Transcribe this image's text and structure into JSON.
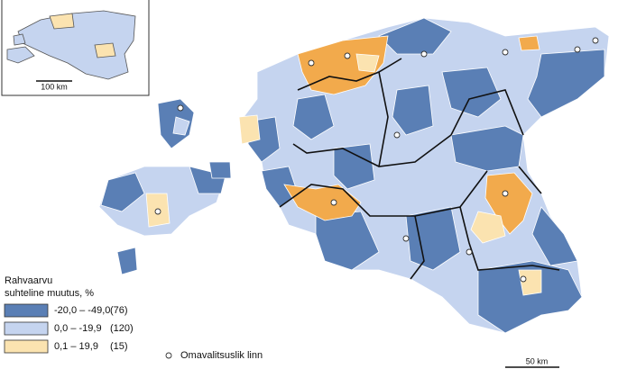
{
  "inset": {
    "scale_label": "100 km"
  },
  "legend": {
    "title_lines": [
      "Rahvaarvu",
      "suhteline muutus, %"
    ],
    "items": [
      {
        "range": "-20,0 –  -49,0",
        "count": "(76)"
      },
      {
        "range": "0,0 –  -19,9",
        "count": "(120)"
      },
      {
        "range": "0,1 –  19,9",
        "count": "(15)"
      }
    ]
  },
  "symbols": {
    "town": "Omavalitsuslik linn"
  },
  "scale_label": "50 km"
}
